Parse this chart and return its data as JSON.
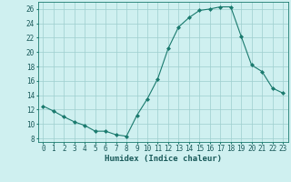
{
  "x": [
    0,
    1,
    2,
    3,
    4,
    5,
    6,
    7,
    8,
    9,
    10,
    11,
    12,
    13,
    14,
    15,
    16,
    17,
    18,
    19,
    20,
    21,
    22,
    23
  ],
  "y": [
    12.5,
    11.8,
    11.0,
    10.3,
    9.8,
    9.0,
    9.0,
    8.5,
    8.3,
    11.2,
    13.5,
    16.3,
    20.5,
    23.5,
    24.8,
    25.8,
    26.0,
    26.3,
    26.3,
    22.2,
    18.2,
    17.3,
    15.0,
    14.3
  ],
  "xlabel": "Humidex (Indice chaleur)",
  "xlim": [
    -0.5,
    23.5
  ],
  "ylim": [
    7.5,
    27
  ],
  "yticks": [
    8,
    10,
    12,
    14,
    16,
    18,
    20,
    22,
    24,
    26
  ],
  "xticks": [
    0,
    1,
    2,
    3,
    4,
    5,
    6,
    7,
    8,
    9,
    10,
    11,
    12,
    13,
    14,
    15,
    16,
    17,
    18,
    19,
    20,
    21,
    22,
    23
  ],
  "line_color": "#1a7a6e",
  "marker_color": "#1a7a6e",
  "bg_color": "#cff0f0",
  "grid_color": "#9ecece",
  "label_fontsize": 6.5,
  "tick_fontsize": 5.5
}
